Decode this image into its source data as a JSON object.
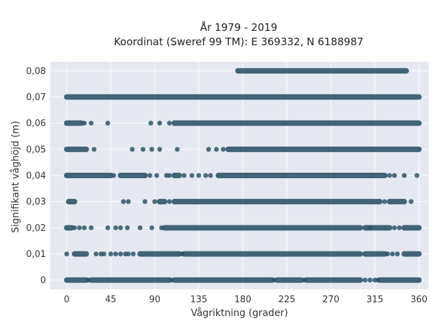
{
  "chart_data": {
    "type": "scatter",
    "title_lines": [
      "År 1979 - 2019",
      "Koordinat (Sweref 99 TM): E 369332, N 6188987"
    ],
    "xlabel": "Vågriktning (grader)",
    "ylabel": "Signifikant våghöjd (m)",
    "xlim": [
      -17,
      370
    ],
    "ylim": [
      -0.0035,
      0.0835
    ],
    "x_ticks": [
      0,
      45,
      90,
      135,
      180,
      225,
      270,
      315,
      360
    ],
    "x_tick_labels": [
      "0",
      "45",
      "90",
      "135",
      "180",
      "225",
      "270",
      "315",
      "360"
    ],
    "y_ticks": [
      0,
      0.01,
      0.02,
      0.03,
      0.04,
      0.05,
      0.06,
      0.07,
      0.08
    ],
    "y_tick_labels": [
      "0",
      "0,01",
      "0,02",
      "0,03",
      "0,04",
      "0,05",
      "0,06",
      "0,07",
      "0,08"
    ],
    "grid": true,
    "marker_color": "#2f5468",
    "background_color": "#e5e8f0",
    "rows": [
      {
        "y": 0.0,
        "dense": [
          [
            0,
            20
          ],
          [
            25,
            105
          ],
          [
            110,
            210
          ],
          [
            215,
            240
          ],
          [
            245,
            300
          ],
          [
            320,
            360
          ]
        ],
        "points": [
          22,
          107,
          212,
          243,
          305,
          310,
          315,
          318
        ]
      },
      {
        "y": 0.01,
        "dense": [
          [
            8,
            20
          ],
          [
            75,
            115
          ],
          [
            120,
            300
          ],
          [
            305,
            325
          ],
          [
            345,
            360
          ]
        ],
        "points": [
          0,
          30,
          35,
          38,
          45,
          50,
          55,
          60,
          63,
          68,
          118,
          328,
          333,
          338
        ]
      },
      {
        "y": 0.02,
        "dense": [
          [
            0,
            5
          ],
          [
            100,
            300
          ],
          [
            305,
            330
          ],
          [
            345,
            360
          ]
        ],
        "points": [
          8,
          13,
          18,
          25,
          42,
          50,
          55,
          62,
          75,
          87,
          97,
          310,
          335,
          340
        ]
      },
      {
        "y": 0.03,
        "dense": [
          [
            2,
            8
          ],
          [
            95,
            100
          ],
          [
            110,
            320
          ],
          [
            330,
            345
          ]
        ],
        "points": [
          58,
          63,
          80,
          90,
          105,
          325,
          352
        ]
      },
      {
        "y": 0.04,
        "dense": [
          [
            0,
            45
          ],
          [
            55,
            80
          ],
          [
            110,
            115
          ],
          [
            155,
            325
          ]
        ],
        "points": [
          48,
          85,
          92,
          102,
          105,
          120,
          128,
          135,
          142,
          147,
          330,
          335,
          345,
          358
        ]
      },
      {
        "y": 0.05,
        "dense": [
          [
            0,
            20
          ],
          [
            165,
            360
          ]
        ],
        "points": [
          28,
          67,
          78,
          87,
          95,
          113,
          145,
          153,
          160
        ]
      },
      {
        "y": 0.06,
        "dense": [
          [
            0,
            15
          ],
          [
            110,
            360
          ]
        ],
        "points": [
          18,
          25,
          42,
          86,
          95,
          105
        ]
      },
      {
        "y": 0.07,
        "dense": [
          [
            0,
            360
          ]
        ],
        "points": []
      },
      {
        "y": 0.08,
        "dense": [
          [
            175,
            347
          ]
        ],
        "points": []
      }
    ]
  }
}
